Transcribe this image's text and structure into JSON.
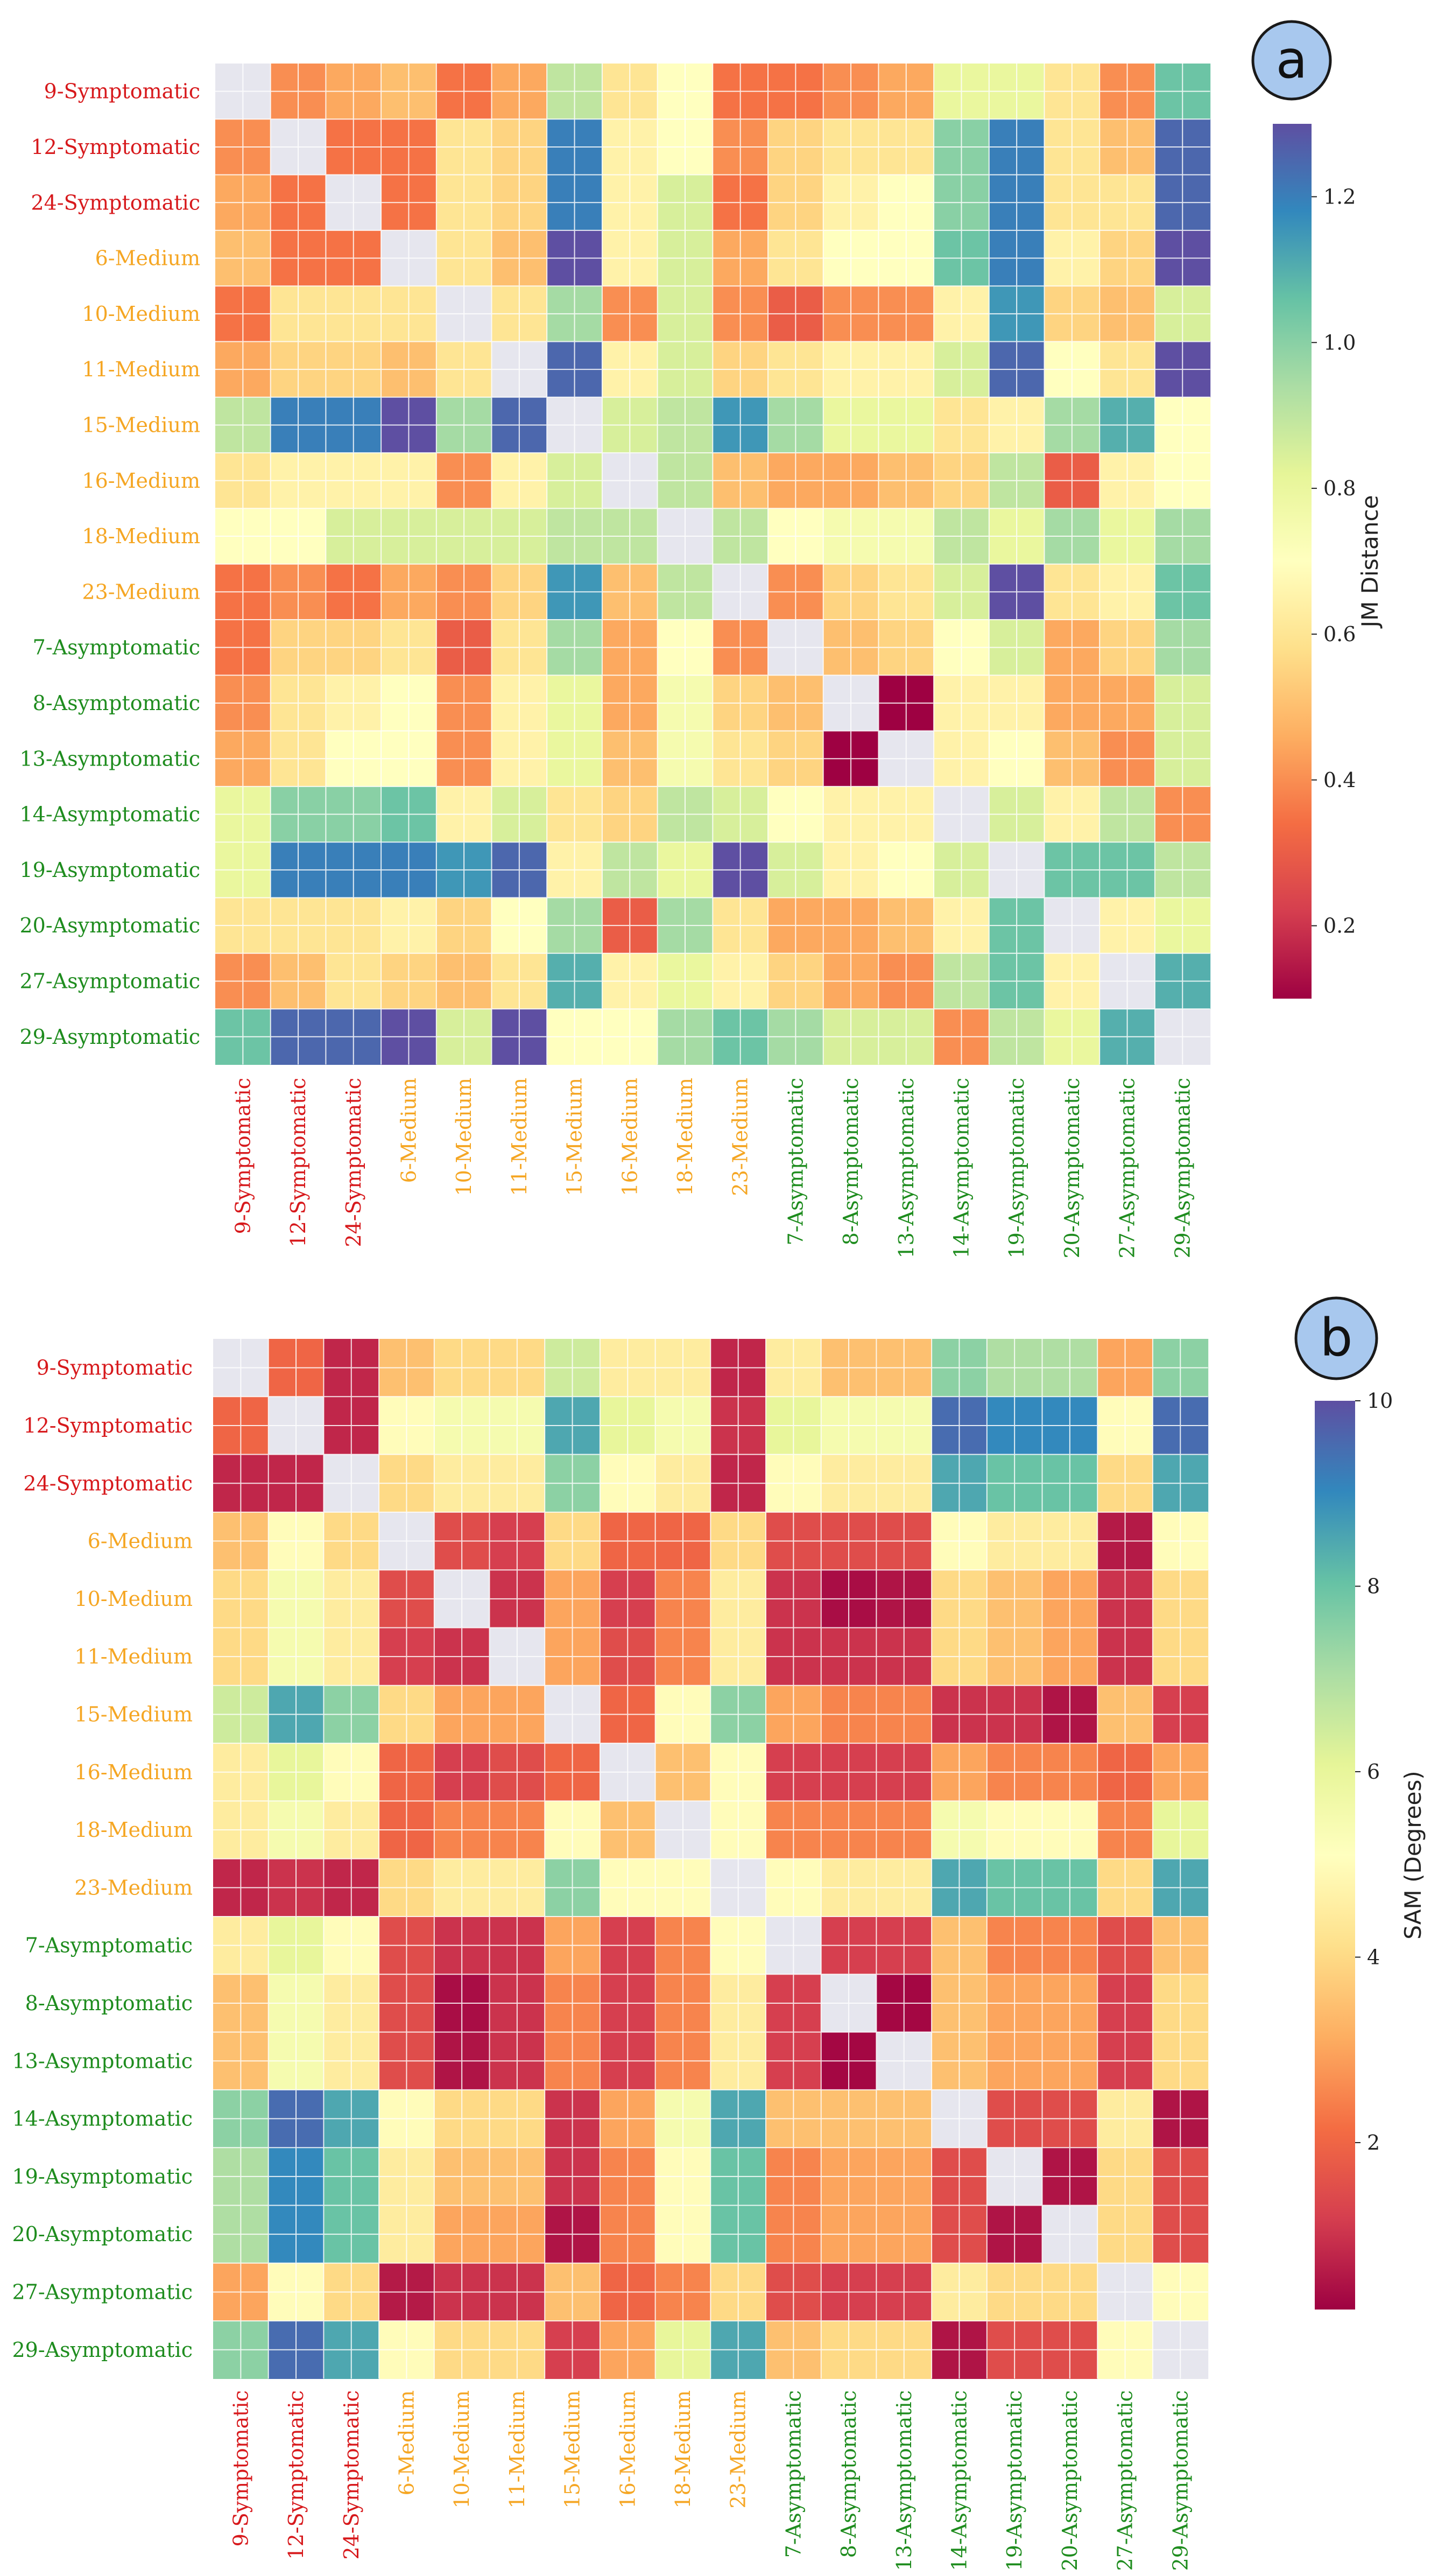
{
  "chart_data": [
    {
      "type": "heatmap",
      "panel_label": "a",
      "categories": [
        "9-Symptomatic",
        "12-Symptomatic",
        "24-Symptomatic",
        "6-Medium",
        "10-Medium",
        "11-Medium",
        "15-Medium",
        "16-Medium",
        "18-Medium",
        "23-Medium",
        "7-Asymptomatic",
        "8-Asymptomatic",
        "13-Asymptomatic",
        "14-Asymptomatic",
        "19-Asymptomatic",
        "20-Asymptomatic",
        "27-Asymptomatic",
        "29-Asymptomatic"
      ],
      "colorbar_label": "JM Distance",
      "colorbar_ticks": [
        "0.2",
        "0.4",
        "0.6",
        "0.8",
        "1.0",
        "1.2"
      ],
      "colorbar_tick_values": [
        0.2,
        0.4,
        0.6,
        0.8,
        1.0,
        1.2
      ],
      "vmin": 0.1,
      "vmax": 1.3,
      "colormap": "Spectral",
      "matrix": [
        [
          null,
          0.4,
          0.45,
          0.5,
          0.35,
          0.45,
          0.9,
          0.6,
          0.7,
          0.35,
          0.35,
          0.4,
          0.45,
          0.8,
          0.8,
          0.6,
          0.4,
          1.05
        ],
        [
          0.4,
          null,
          0.35,
          0.35,
          0.6,
          0.55,
          1.2,
          0.65,
          0.7,
          0.4,
          0.55,
          0.6,
          0.6,
          1.0,
          1.2,
          0.6,
          0.5,
          1.25
        ],
        [
          0.45,
          0.35,
          null,
          0.35,
          0.6,
          0.55,
          1.2,
          0.65,
          0.85,
          0.35,
          0.55,
          0.65,
          0.7,
          1.0,
          1.2,
          0.6,
          0.6,
          1.25
        ],
        [
          0.5,
          0.35,
          0.35,
          null,
          0.6,
          0.5,
          1.3,
          0.65,
          0.85,
          0.45,
          0.6,
          0.7,
          0.7,
          1.05,
          1.2,
          0.65,
          0.55,
          1.3
        ],
        [
          0.35,
          0.6,
          0.6,
          0.6,
          null,
          0.6,
          0.95,
          0.4,
          0.85,
          0.4,
          0.3,
          0.4,
          0.4,
          0.65,
          1.15,
          0.55,
          0.5,
          0.85
        ],
        [
          0.45,
          0.55,
          0.55,
          0.5,
          0.6,
          null,
          1.25,
          0.65,
          0.85,
          0.55,
          0.6,
          0.65,
          0.65,
          0.85,
          1.25,
          0.7,
          0.6,
          1.3
        ],
        [
          0.9,
          1.2,
          1.2,
          1.3,
          0.95,
          1.25,
          null,
          0.85,
          0.9,
          1.15,
          0.95,
          0.8,
          0.8,
          0.6,
          0.65,
          0.95,
          1.1,
          0.7
        ],
        [
          0.6,
          0.65,
          0.65,
          0.65,
          0.4,
          0.65,
          0.85,
          null,
          0.9,
          0.5,
          0.45,
          0.45,
          0.5,
          0.55,
          0.9,
          0.3,
          0.65,
          0.7
        ],
        [
          0.7,
          0.7,
          0.85,
          0.85,
          0.85,
          0.85,
          0.9,
          0.9,
          null,
          0.9,
          0.7,
          0.75,
          0.75,
          0.9,
          0.8,
          0.95,
          0.8,
          0.95
        ],
        [
          0.35,
          0.4,
          0.35,
          0.45,
          0.4,
          0.55,
          1.15,
          0.5,
          0.9,
          null,
          0.4,
          0.55,
          0.6,
          0.85,
          1.3,
          0.6,
          0.65,
          1.05
        ],
        [
          0.35,
          0.55,
          0.55,
          0.6,
          0.3,
          0.6,
          0.95,
          0.45,
          0.7,
          0.4,
          null,
          0.5,
          0.55,
          0.7,
          0.85,
          0.45,
          0.55,
          0.95
        ],
        [
          0.4,
          0.6,
          0.65,
          0.7,
          0.4,
          0.65,
          0.8,
          0.45,
          0.75,
          0.55,
          0.5,
          null,
          0.1,
          0.65,
          0.65,
          0.45,
          0.45,
          0.85
        ],
        [
          0.45,
          0.6,
          0.7,
          0.7,
          0.4,
          0.65,
          0.8,
          0.5,
          0.75,
          0.6,
          0.55,
          0.1,
          null,
          0.65,
          0.7,
          0.5,
          0.4,
          0.85
        ],
        [
          0.8,
          1.0,
          1.0,
          1.05,
          0.65,
          0.85,
          0.6,
          0.55,
          0.9,
          0.85,
          0.7,
          0.65,
          0.65,
          null,
          0.85,
          0.65,
          0.9,
          0.4
        ],
        [
          0.8,
          1.2,
          1.2,
          1.2,
          1.15,
          1.25,
          0.65,
          0.9,
          0.8,
          1.3,
          0.85,
          0.65,
          0.7,
          0.85,
          null,
          1.05,
          1.05,
          0.9
        ],
        [
          0.6,
          0.6,
          0.6,
          0.65,
          0.55,
          0.7,
          0.95,
          0.3,
          0.95,
          0.6,
          0.45,
          0.45,
          0.5,
          0.65,
          1.05,
          null,
          0.65,
          0.8
        ],
        [
          0.4,
          0.5,
          0.6,
          0.55,
          0.5,
          0.6,
          1.1,
          0.65,
          0.8,
          0.65,
          0.55,
          0.45,
          0.4,
          0.9,
          1.05,
          0.65,
          null,
          1.1
        ],
        [
          1.05,
          1.25,
          1.25,
          1.3,
          0.85,
          1.3,
          0.7,
          0.7,
          0.95,
          1.05,
          0.95,
          0.85,
          0.85,
          0.4,
          0.9,
          0.8,
          1.1,
          null
        ]
      ]
    },
    {
      "type": "heatmap",
      "panel_label": "b",
      "categories": [
        "9-Symptomatic",
        "12-Symptomatic",
        "24-Symptomatic",
        "6-Medium",
        "10-Medium",
        "11-Medium",
        "15-Medium",
        "16-Medium",
        "18-Medium",
        "23-Medium",
        "7-Asymptomatic",
        "8-Asymptomatic",
        "13-Asymptomatic",
        "14-Asymptomatic",
        "19-Asymptomatic",
        "20-Asymptomatic",
        "27-Asymptomatic",
        "29-Asymptomatic"
      ],
      "colorbar_label": "SAM (Degrees)",
      "colorbar_ticks": [
        "2",
        "4",
        "6",
        "8",
        "10"
      ],
      "colorbar_tick_values": [
        2,
        4,
        6,
        8,
        10
      ],
      "vmin": 0.2,
      "vmax": 10,
      "colormap": "Spectral",
      "matrix": [
        [
          null,
          2.0,
          0.8,
          3.5,
          4.0,
          4.0,
          6.5,
          4.5,
          4.5,
          0.8,
          4.5,
          3.5,
          3.5,
          7.5,
          7.0,
          7.0,
          3.0,
          7.5
        ],
        [
          2.0,
          null,
          0.8,
          5.0,
          5.5,
          5.5,
          8.5,
          6.0,
          5.5,
          1.0,
          6.0,
          5.5,
          5.5,
          9.5,
          9.0,
          9.0,
          5.0,
          9.5
        ],
        [
          0.8,
          0.8,
          null,
          4.0,
          4.5,
          4.5,
          7.5,
          5.0,
          4.5,
          0.8,
          5.0,
          4.5,
          4.5,
          8.5,
          8.0,
          8.0,
          4.0,
          8.5
        ],
        [
          3.5,
          5.0,
          4.0,
          null,
          1.5,
          1.2,
          4.0,
          2.0,
          2.0,
          4.0,
          1.5,
          1.5,
          1.5,
          5.0,
          4.5,
          4.5,
          0.6,
          5.0
        ],
        [
          4.0,
          5.5,
          4.5,
          1.5,
          null,
          1.0,
          3.0,
          1.2,
          2.5,
          4.5,
          1.0,
          0.4,
          0.5,
          4.0,
          3.5,
          3.0,
          1.0,
          4.0
        ],
        [
          4.0,
          5.5,
          4.5,
          1.2,
          1.0,
          null,
          3.0,
          1.5,
          2.5,
          4.5,
          1.0,
          1.0,
          1.0,
          4.0,
          3.5,
          3.0,
          1.0,
          4.0
        ],
        [
          6.5,
          8.5,
          7.5,
          4.0,
          3.0,
          3.0,
          null,
          2.0,
          5.0,
          7.5,
          3.0,
          2.5,
          2.5,
          1.0,
          1.0,
          0.5,
          3.5,
          1.2
        ],
        [
          4.5,
          6.0,
          5.0,
          2.0,
          1.2,
          1.5,
          2.0,
          null,
          3.5,
          5.0,
          1.2,
          1.2,
          1.2,
          3.0,
          2.5,
          2.5,
          2.0,
          3.0
        ],
        [
          4.5,
          5.5,
          4.5,
          2.0,
          2.5,
          2.5,
          5.0,
          3.5,
          null,
          5.0,
          2.5,
          2.5,
          2.5,
          5.5,
          5.0,
          5.0,
          2.5,
          6.0
        ],
        [
          0.8,
          1.0,
          0.8,
          4.0,
          4.5,
          4.5,
          7.5,
          5.0,
          5.0,
          null,
          5.0,
          4.5,
          4.5,
          8.5,
          8.0,
          8.0,
          4.0,
          8.5
        ],
        [
          4.5,
          6.0,
          5.0,
          1.5,
          1.0,
          1.0,
          3.0,
          1.2,
          2.5,
          5.0,
          null,
          1.2,
          1.2,
          3.5,
          2.5,
          2.5,
          1.5,
          3.5
        ],
        [
          3.5,
          5.5,
          4.5,
          1.5,
          0.4,
          1.0,
          2.5,
          1.2,
          2.5,
          4.5,
          1.2,
          null,
          0.3,
          3.5,
          3.0,
          3.0,
          1.2,
          4.0
        ],
        [
          3.5,
          5.5,
          4.5,
          1.5,
          0.5,
          1.0,
          2.5,
          1.2,
          2.5,
          4.5,
          1.2,
          0.3,
          null,
          3.5,
          3.0,
          3.0,
          1.2,
          4.0
        ],
        [
          7.5,
          9.5,
          8.5,
          5.0,
          4.0,
          4.0,
          1.0,
          3.0,
          5.5,
          8.5,
          3.5,
          3.5,
          3.5,
          null,
          1.5,
          1.5,
          4.5,
          0.5
        ],
        [
          7.0,
          9.0,
          8.0,
          4.5,
          3.5,
          3.5,
          1.0,
          2.5,
          5.0,
          8.0,
          2.5,
          3.0,
          3.0,
          1.5,
          null,
          0.5,
          4.0,
          1.5
        ],
        [
          7.0,
          9.0,
          8.0,
          4.5,
          3.0,
          3.0,
          0.5,
          2.5,
          5.0,
          8.0,
          2.5,
          3.0,
          3.0,
          1.5,
          0.5,
          null,
          4.0,
          1.5
        ],
        [
          3.0,
          5.0,
          4.0,
          0.6,
          1.0,
          1.0,
          3.5,
          2.0,
          2.5,
          4.0,
          1.5,
          1.2,
          1.2,
          4.5,
          4.0,
          4.0,
          null,
          5.0
        ],
        [
          7.5,
          9.5,
          8.5,
          5.0,
          4.0,
          4.0,
          1.2,
          3.0,
          6.0,
          8.5,
          3.5,
          4.0,
          4.0,
          0.5,
          1.5,
          1.5,
          5.0,
          null
        ]
      ]
    }
  ],
  "colors": {
    "symptomatic": "#d7191c",
    "medium": "#f5a623",
    "asymptomatic": "#1e8c1e",
    "diagonal": "#e6e6ee",
    "grid": "#ffffff",
    "badge_fill": "#a8c8ee"
  }
}
